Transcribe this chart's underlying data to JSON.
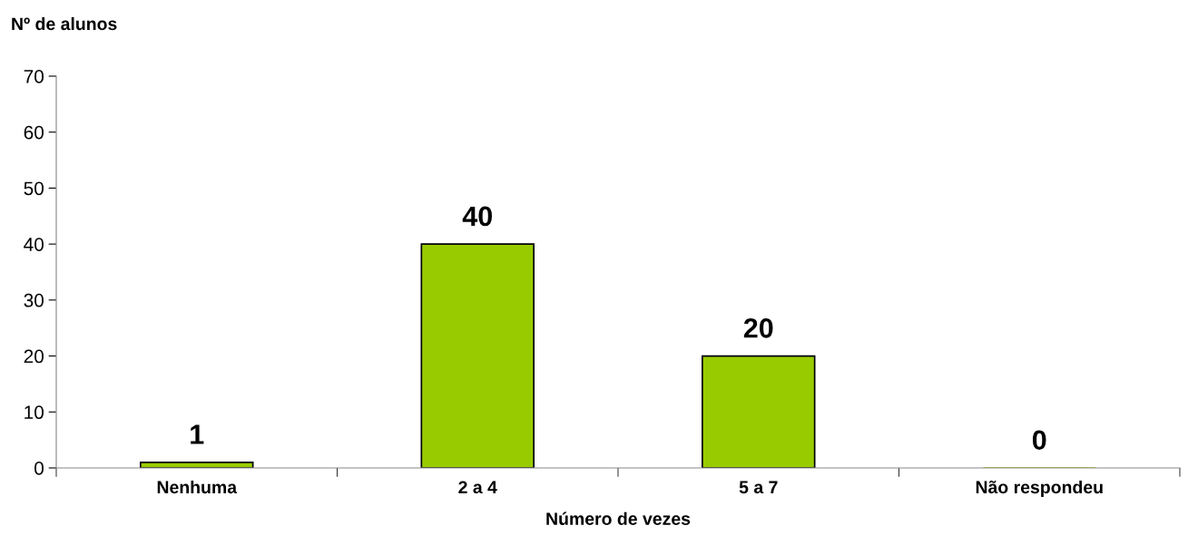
{
  "chart_data": {
    "type": "bar",
    "categories": [
      "Nenhuma",
      "2 a 4",
      "5 a 7",
      "Não respondeu"
    ],
    "values": [
      1,
      40,
      20,
      0
    ],
    "color": "#99cc00",
    "ylabel": "Nº de alunos",
    "xlabel": "Número de vezes",
    "ylim": [
      0,
      70
    ],
    "yticks": [
      0,
      10,
      20,
      30,
      40,
      50,
      60,
      70
    ],
    "data_labels": true,
    "grid": false,
    "legend": false
  }
}
